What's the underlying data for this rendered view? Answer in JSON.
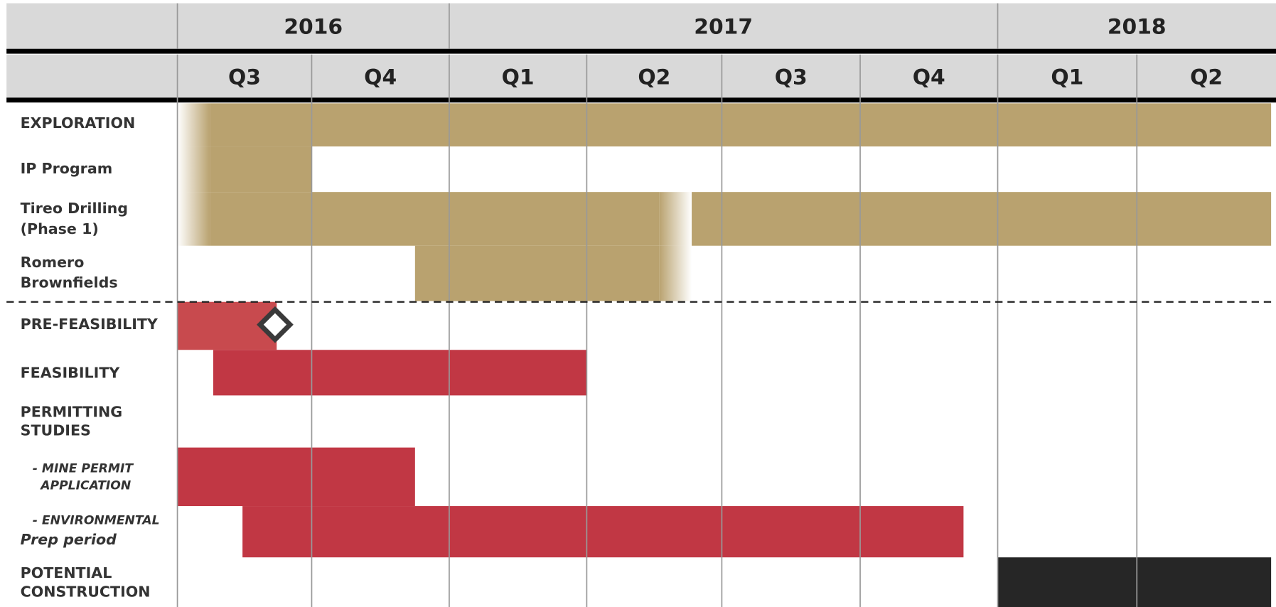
{
  "header": {
    "years": [
      "2016",
      "2017",
      "2018"
    ],
    "quarters": [
      "Q3",
      "Q4",
      "Q1",
      "Q2",
      "Q3",
      "Q4",
      "Q1",
      "Q2"
    ]
  },
  "rows": [
    {
      "lines": [
        "EXPLORATION"
      ]
    },
    {
      "lines": [
        "IP Program"
      ]
    },
    {
      "lines": [
        "Tireo Drilling",
        "(Phase 1)"
      ]
    },
    {
      "lines": [
        "Romero",
        "Brownfields"
      ]
    },
    {
      "lines": [
        "PRE-FEASIBILITY"
      ]
    },
    {
      "lines": [
        "FEASIBILITY"
      ]
    },
    {
      "lines": [
        "PERMITTING",
        "STUDIES"
      ]
    },
    {
      "lines": [
        "- MINE PERMIT",
        "APPLICATION"
      ]
    },
    {
      "lines": [
        "- ENVIRONMENTAL",
        "Prep  period"
      ]
    },
    {
      "lines": [
        "POTENTIAL",
        "CONSTRUCTION"
      ]
    }
  ]
}
